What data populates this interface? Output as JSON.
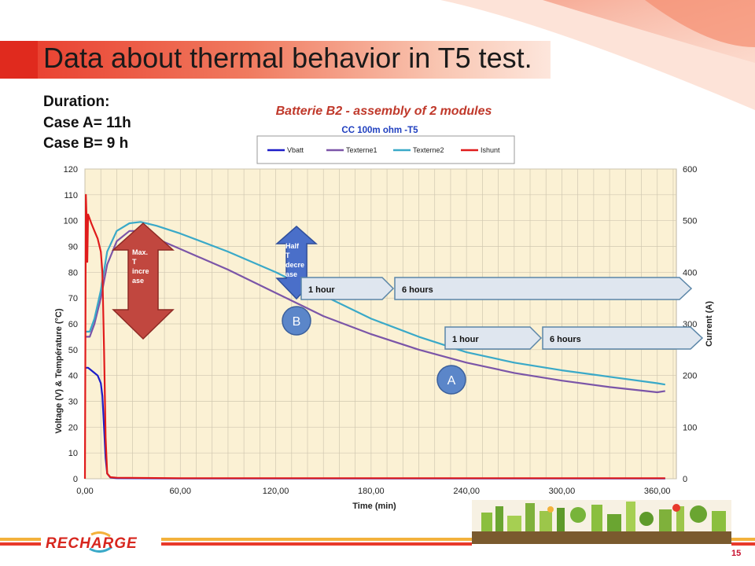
{
  "slide": {
    "title": "Data about thermal behavior in T5 test.",
    "duration_lines": [
      "Duration:",
      "Case A= 11h",
      "Case B= 9 h"
    ],
    "page_number": "15",
    "logo_text": "RECHARGE"
  },
  "colors": {
    "vbatt": "#1c1cc8",
    "texterne1": "#7b55a8",
    "texterne2": "#3aa9c8",
    "ishunt": "#e01b1b",
    "plot_bg": "#fbf1d4",
    "grid": "#d0c7b0",
    "title_red": "#c0392b",
    "subtitle_blue": "#1f3fbf",
    "arrow_red": "#c1473f",
    "arrow_blue": "#4a6fc9"
  },
  "chart_data": {
    "type": "line",
    "title": "Batterie B2 - assembly of 2 modules",
    "subtitle": "CC 100m ohm -T5",
    "xlabel": "Time (min)",
    "ylabel": "Voltage (V) & Température (°C)",
    "y2label": "Current (A)",
    "xlim": [
      0,
      372
    ],
    "ylim": [
      0,
      120
    ],
    "y2lim": [
      0,
      600
    ],
    "x_ticks": [
      "0,00",
      "60,00",
      "120,00",
      "180,00",
      "240,00",
      "300,00",
      "360,00"
    ],
    "y_ticks": [
      "0",
      "10",
      "20",
      "30",
      "40",
      "50",
      "60",
      "70",
      "80",
      "90",
      "100",
      "110",
      "120"
    ],
    "y2_ticks": [
      "0",
      "100",
      "200",
      "300",
      "400",
      "500",
      "600"
    ],
    "grid": true,
    "legend_position": "top",
    "series": [
      {
        "name": "Vbatt",
        "axis": "left",
        "x": [
          0,
          2,
          4,
          6,
          8,
          10,
          11,
          12,
          13,
          14,
          16,
          20,
          60,
          120,
          180,
          240,
          300,
          365
        ],
        "y": [
          43,
          43,
          42,
          41,
          40,
          37,
          32,
          20,
          8,
          2,
          0.5,
          0.2,
          0.1,
          0.1,
          0.1,
          0.1,
          0.1,
          0.1
        ]
      },
      {
        "name": "Texterne1",
        "axis": "left",
        "x": [
          0,
          3,
          6,
          10,
          14,
          20,
          28,
          35,
          45,
          60,
          90,
          120,
          150,
          180,
          210,
          240,
          270,
          300,
          330,
          360,
          365
        ],
        "y": [
          55,
          55,
          60,
          70,
          83,
          92,
          96,
          96,
          93,
          89,
          81,
          72,
          63,
          56,
          50,
          45,
          41,
          38,
          35.5,
          33.5,
          34
        ]
      },
      {
        "name": "Texterne2",
        "axis": "left",
        "x": [
          0,
          3,
          6,
          10,
          14,
          20,
          28,
          35,
          45,
          60,
          90,
          120,
          150,
          180,
          210,
          240,
          270,
          300,
          330,
          360,
          365
        ],
        "y": [
          57,
          57,
          62,
          73,
          88,
          96,
          99,
          99.5,
          98,
          95,
          88,
          80,
          71,
          62,
          55,
          49,
          45,
          42,
          39.5,
          37,
          36.5
        ]
      },
      {
        "name": "Ishunt",
        "axis": "right",
        "x": [
          0,
          0.6,
          1,
          1.5,
          2,
          4,
          6,
          8,
          10,
          11,
          12,
          13,
          14,
          16,
          20,
          60,
          120,
          180,
          240,
          300,
          365
        ],
        "y": [
          0,
          550,
          510,
          420,
          512,
          495,
          480,
          465,
          440,
          400,
          250,
          80,
          10,
          3,
          2,
          1,
          1,
          1,
          1,
          1,
          1
        ]
      }
    ],
    "annotations": {
      "max_t_increase": "Max. T incre ase",
      "half_t_decrease": "Half T decre ase",
      "case_b_1hour": "1 hour",
      "case_b_6hours": "6 hours",
      "case_a_1hour": "1 hour",
      "case_a_6hours": "6 hours",
      "marker_b": "B",
      "marker_a": "A"
    }
  }
}
